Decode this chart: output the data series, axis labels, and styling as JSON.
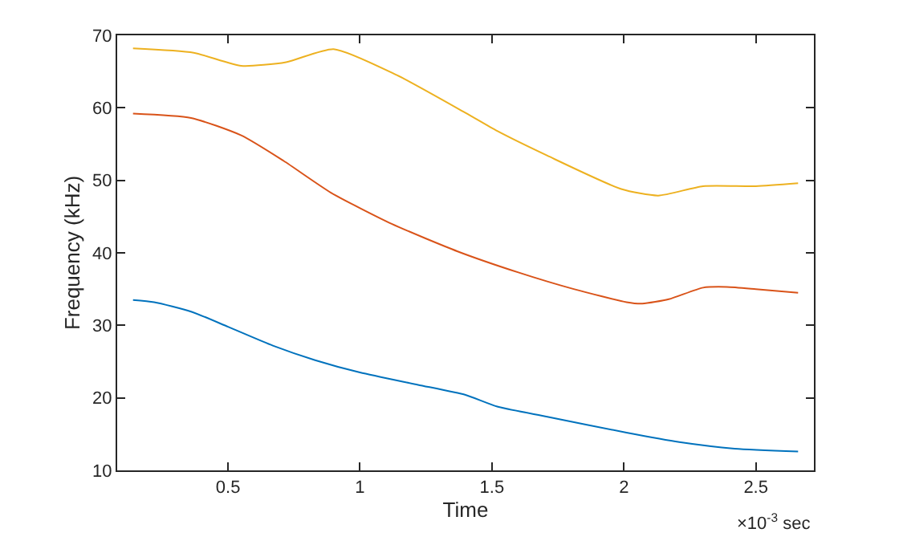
{
  "chart_data": {
    "type": "line",
    "xlabel": "Time",
    "ylabel": "Frequency (kHz)",
    "xlim": [
      0.08,
      2.72
    ],
    "xticks": [
      0.5,
      1,
      1.5,
      2,
      2.5
    ],
    "ylim": [
      10,
      70
    ],
    "yticks": [
      10,
      20,
      30,
      40,
      50,
      60,
      70
    ],
    "annotations": [
      "×10$^{-3}$ sec"
    ],
    "series": [
      {
        "color": "#0072bd",
        "x": [
          0.14,
          0.22,
          0.36,
          0.5,
          0.67,
          0.83,
          1.0,
          1.22,
          1.4,
          1.52,
          1.71,
          2.01,
          2.21,
          2.42,
          2.66
        ],
        "values": [
          33.5,
          33.2,
          31.9,
          29.8,
          27.2,
          25.2,
          23.5,
          21.8,
          20.4,
          18.8,
          17.4,
          15.2,
          13.9,
          13.0,
          12.6
        ]
      },
      {
        "color": "#d95319",
        "x": [
          0.14,
          0.36,
          0.55,
          0.71,
          0.89,
          1.12,
          1.37,
          1.6,
          1.81,
          2.01,
          2.07,
          2.17,
          2.3,
          2.39,
          2.5,
          2.66
        ],
        "values": [
          59.2,
          58.6,
          56.2,
          52.7,
          48.3,
          44.0,
          40.2,
          37.3,
          35.0,
          33.2,
          33.0,
          33.6,
          35.2,
          35.3,
          35.0,
          34.5
        ]
      },
      {
        "color": "#edb120",
        "x": [
          0.14,
          0.37,
          0.55,
          0.72,
          0.9,
          1.14,
          1.4,
          1.52,
          1.71,
          1.99,
          2.13,
          2.3,
          2.5,
          2.66
        ],
        "values": [
          68.2,
          67.6,
          65.8,
          66.3,
          68.1,
          64.5,
          59.3,
          56.8,
          53.4,
          48.8,
          47.9,
          49.2,
          49.2,
          49.6
        ]
      }
    ]
  }
}
